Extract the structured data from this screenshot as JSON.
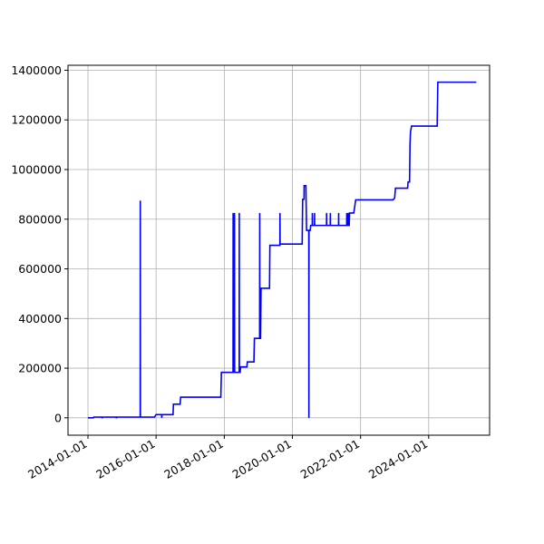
{
  "chart_data": {
    "type": "line",
    "title": "",
    "xlabel": "",
    "ylabel": "",
    "x_axis_type": "date",
    "xlim": [
      "2013-06-01",
      "2025-10-15"
    ],
    "ylim": [
      -70000,
      1420000
    ],
    "grid": true,
    "legend": "none",
    "x_ticks": [
      "2014-01-01",
      "2016-01-01",
      "2018-01-01",
      "2020-01-01",
      "2022-01-01",
      "2024-01-01"
    ],
    "y_ticks": [
      0,
      200000,
      400000,
      600000,
      800000,
      1000000,
      1200000,
      1400000
    ],
    "y_tick_labels": [
      "0",
      "200000",
      "400000",
      "600000",
      "800000",
      "1000000",
      "1200000",
      "1400000"
    ],
    "series": [
      {
        "color": "#0000ff",
        "points": [
          [
            "2014-01-01",
            0
          ],
          [
            "2014-03-01",
            0
          ],
          [
            "2014-03-05",
            3000
          ],
          [
            "2014-06-01",
            3000
          ],
          [
            "2014-06-02",
            -2000
          ],
          [
            "2014-06-03",
            3000
          ],
          [
            "2014-11-01",
            3000
          ],
          [
            "2014-11-02",
            -2000
          ],
          [
            "2014-11-03",
            3000
          ],
          [
            "2015-07-15",
            3000
          ],
          [
            "2015-07-16",
            875000
          ],
          [
            "2015-07-17",
            3000
          ],
          [
            "2015-12-15",
            3000
          ],
          [
            "2016-01-01",
            13000
          ],
          [
            "2016-03-01",
            13000
          ],
          [
            "2016-03-02",
            0
          ],
          [
            "2016-03-03",
            13000
          ],
          [
            "2016-07-01",
            13000
          ],
          [
            "2016-07-05",
            55000
          ],
          [
            "2016-09-15",
            55000
          ],
          [
            "2016-09-20",
            83000
          ],
          [
            "2017-11-25",
            83000
          ],
          [
            "2017-12-01",
            183000
          ],
          [
            "2018-04-05",
            183000
          ],
          [
            "2018-04-06",
            825000
          ],
          [
            "2018-04-07",
            183000
          ],
          [
            "2018-04-12",
            183000
          ],
          [
            "2018-04-13",
            825000
          ],
          [
            "2018-04-14",
            183000
          ],
          [
            "2018-04-20",
            183000
          ],
          [
            "2018-04-21",
            825000
          ],
          [
            "2018-04-22",
            183000
          ],
          [
            "2018-06-10",
            183000
          ],
          [
            "2018-06-11",
            825000
          ],
          [
            "2018-06-12",
            183000
          ],
          [
            "2018-06-20",
            183000
          ],
          [
            "2018-06-25",
            205000
          ],
          [
            "2018-09-01",
            205000
          ],
          [
            "2018-09-05",
            225000
          ],
          [
            "2018-11-15",
            225000
          ],
          [
            "2018-11-20",
            320000
          ],
          [
            "2019-01-15",
            320000
          ],
          [
            "2019-01-16",
            825000
          ],
          [
            "2019-01-17",
            320000
          ],
          [
            "2019-01-25",
            320000
          ],
          [
            "2019-01-30",
            522000
          ],
          [
            "2019-05-01",
            522000
          ],
          [
            "2019-05-05",
            695000
          ],
          [
            "2019-08-20",
            695000
          ],
          [
            "2019-08-21",
            825000
          ],
          [
            "2019-08-22",
            700000
          ],
          [
            "2020-04-15",
            700000
          ],
          [
            "2020-04-20",
            880000
          ],
          [
            "2020-05-05",
            880000
          ],
          [
            "2020-05-06",
            935000
          ],
          [
            "2020-05-25",
            935000
          ],
          [
            "2020-06-01",
            755000
          ],
          [
            "2020-06-25",
            755000
          ],
          [
            "2020-06-26",
            0
          ],
          [
            "2020-06-27",
            755000
          ],
          [
            "2020-07-10",
            755000
          ],
          [
            "2020-07-15",
            775000
          ],
          [
            "2020-08-01",
            775000
          ],
          [
            "2020-08-02",
            825000
          ],
          [
            "2020-08-03",
            775000
          ],
          [
            "2020-08-25",
            775000
          ],
          [
            "2020-08-26",
            825000
          ],
          [
            "2020-08-27",
            775000
          ],
          [
            "2021-01-01",
            775000
          ],
          [
            "2021-01-02",
            825000
          ],
          [
            "2021-01-03",
            775000
          ],
          [
            "2021-02-10",
            775000
          ],
          [
            "2021-02-11",
            825000
          ],
          [
            "2021-02-12",
            775000
          ],
          [
            "2021-05-10",
            775000
          ],
          [
            "2021-05-11",
            825000
          ],
          [
            "2021-05-12",
            775000
          ],
          [
            "2021-08-05",
            775000
          ],
          [
            "2021-08-06",
            825000
          ],
          [
            "2021-08-07",
            775000
          ],
          [
            "2021-08-20",
            775000
          ],
          [
            "2021-08-21",
            825000
          ],
          [
            "2021-08-22",
            775000
          ],
          [
            "2021-09-01",
            775000
          ],
          [
            "2021-09-05",
            825000
          ],
          [
            "2021-10-20",
            825000
          ],
          [
            "2021-11-10",
            878000
          ],
          [
            "2022-12-15",
            878000
          ],
          [
            "2023-01-01",
            885000
          ],
          [
            "2023-01-10",
            925000
          ],
          [
            "2023-05-20",
            925000
          ],
          [
            "2023-05-25",
            950000
          ],
          [
            "2023-06-10",
            950000
          ],
          [
            "2023-06-15",
            1100000
          ],
          [
            "2023-06-20",
            1150000
          ],
          [
            "2023-07-01",
            1175000
          ],
          [
            "2024-04-01",
            1175000
          ],
          [
            "2024-04-08",
            1352000
          ],
          [
            "2025-05-25",
            1352000
          ]
        ]
      }
    ]
  }
}
